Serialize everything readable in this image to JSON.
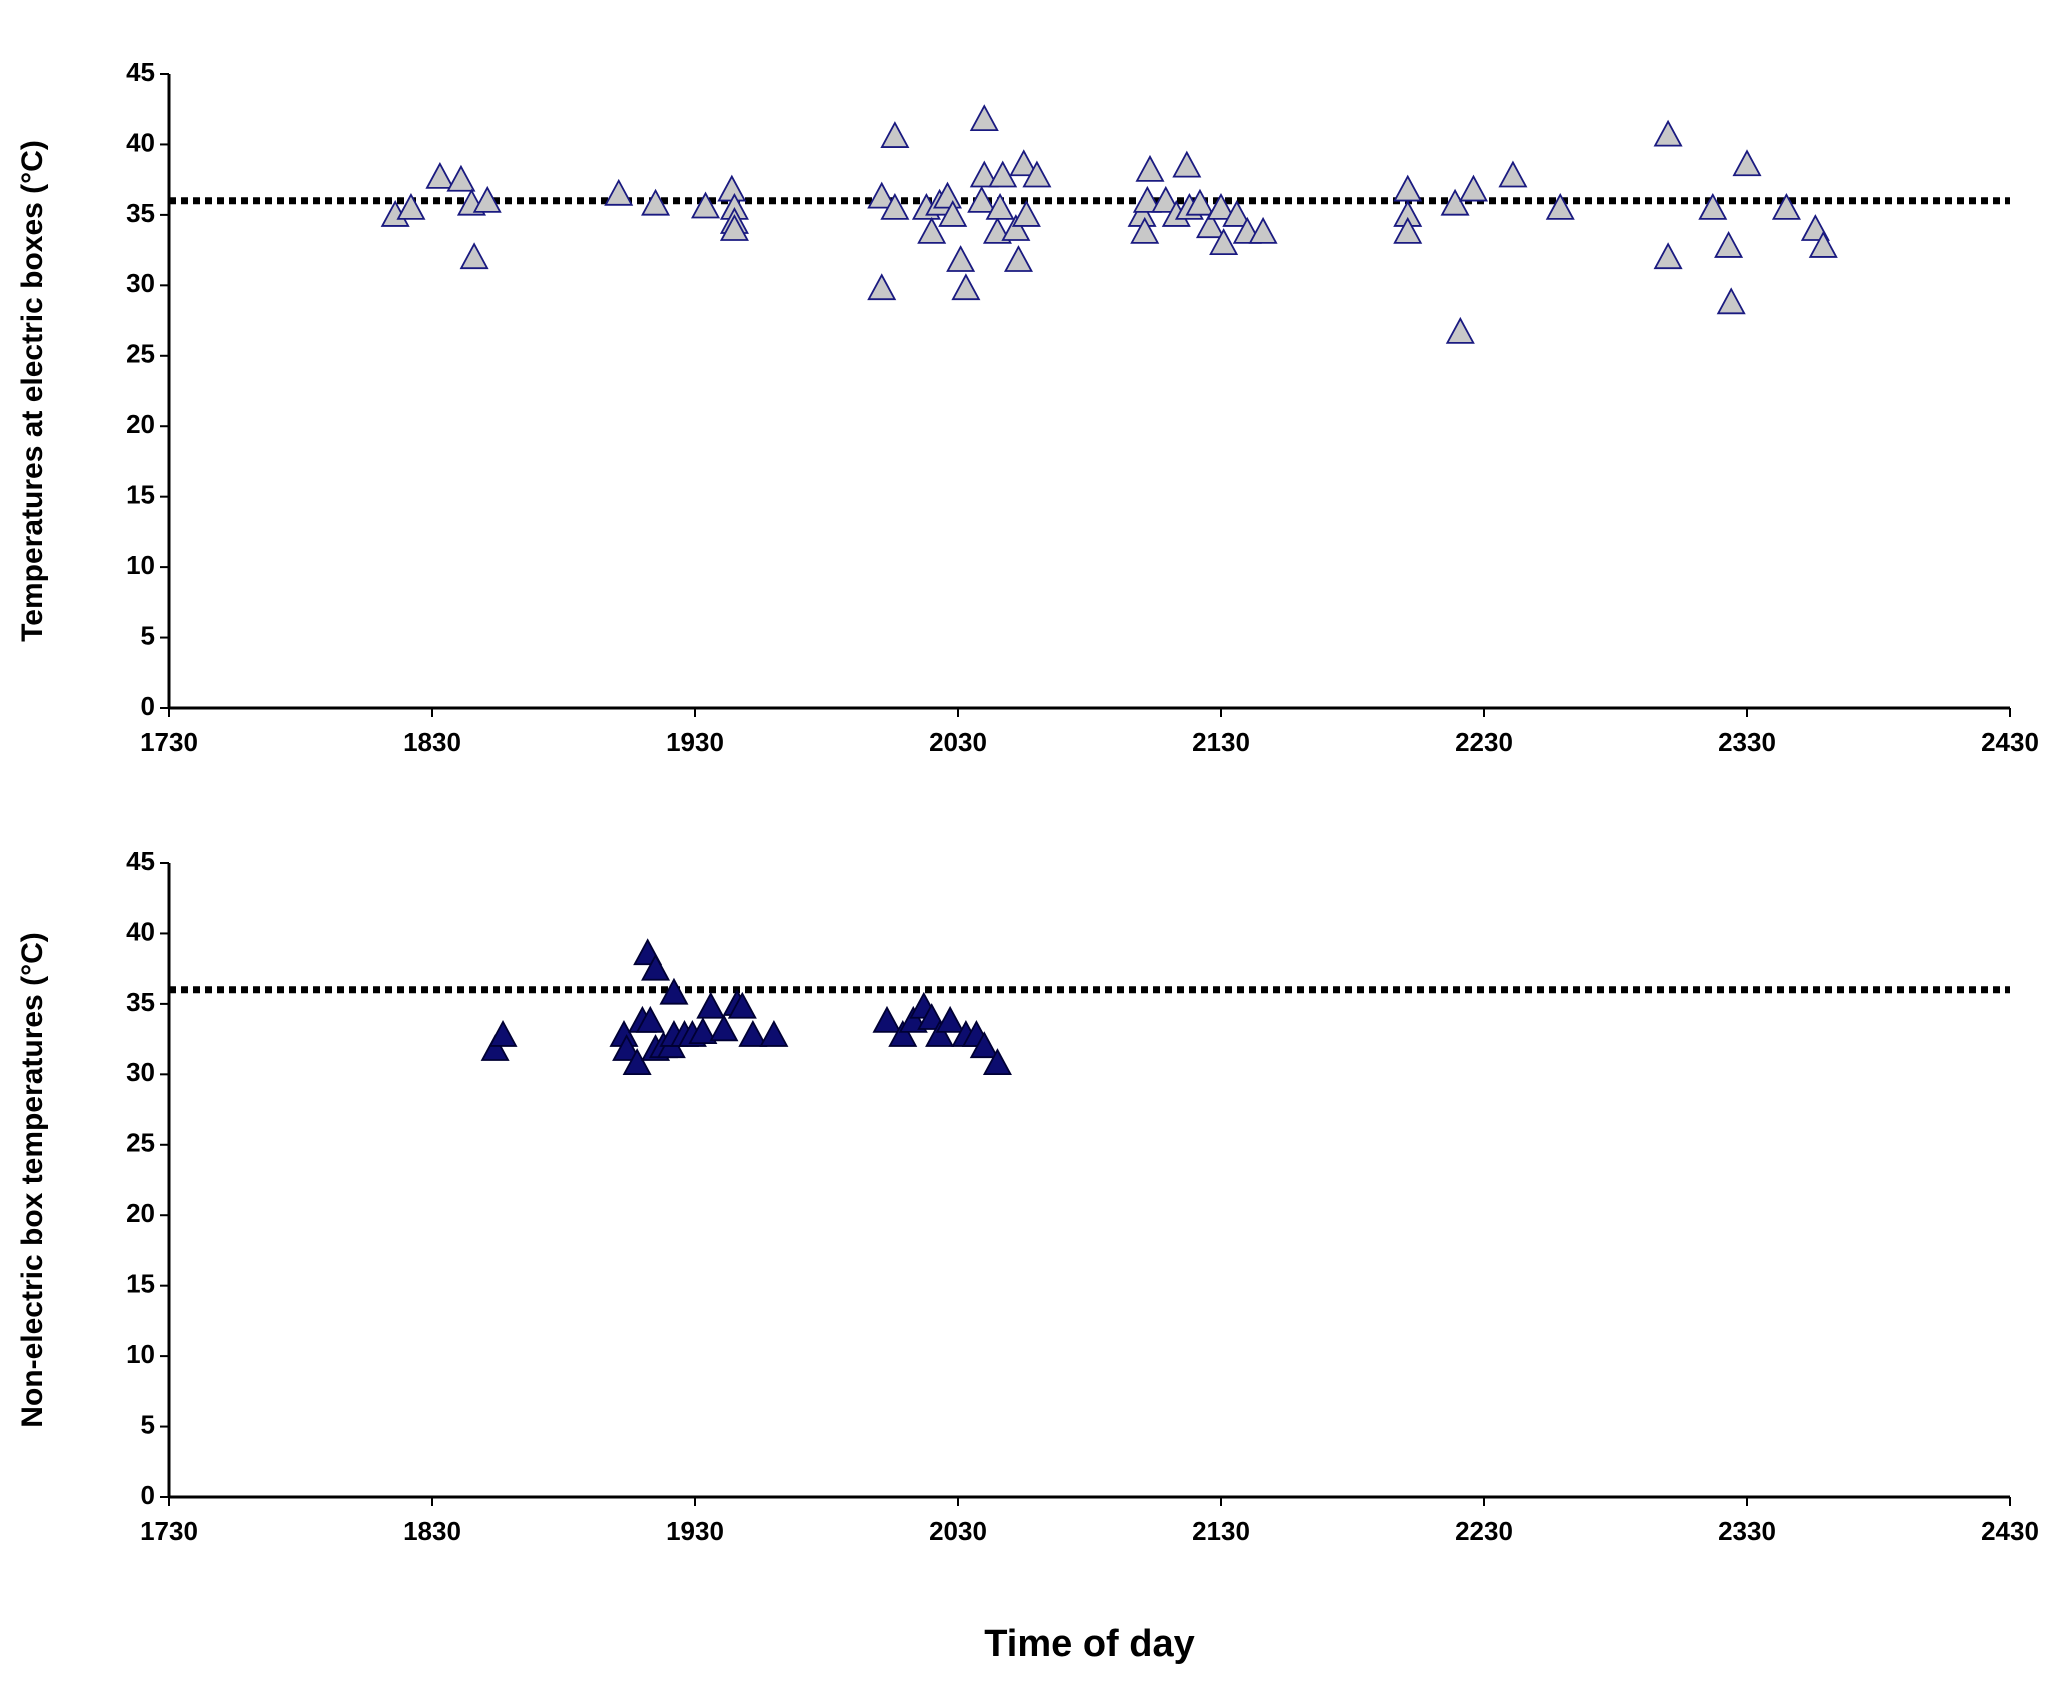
{
  "chart_data": [
    {
      "type": "scatter",
      "y_label": "Temperatures at electric boxes  (°C)",
      "x": [
        1816,
        1822,
        1833,
        1841,
        1845,
        1846,
        1851,
        1901,
        1915,
        1934,
        1944,
        1945,
        1945,
        1945,
        2001,
        2001,
        2006,
        2006,
        2018,
        2020,
        2023,
        2026,
        2028,
        2031,
        2033,
        2039,
        2040,
        2040,
        2045,
        2046,
        2047,
        2052,
        2053,
        2055,
        2056,
        2060,
        2100,
        2101,
        2102,
        2103,
        2109,
        2113,
        2117,
        2118,
        2122,
        2126,
        2130,
        2131,
        2136,
        2140,
        2146,
        2201,
        2201,
        2201,
        2219,
        2221,
        2226,
        2241,
        2259,
        2300,
        2300,
        2317,
        2323,
        2324,
        2330,
        2345,
        2356,
        2359
      ],
      "values": [
        35,
        35.5,
        37.7,
        37.5,
        35.8,
        32,
        36,
        36.5,
        35.8,
        35.6,
        36.8,
        35.5,
        34.5,
        34,
        36.3,
        29.8,
        40.6,
        35.5,
        35.5,
        33.8,
        35.8,
        36.3,
        35,
        31.8,
        29.8,
        36,
        41.8,
        37.8,
        33.8,
        35.5,
        37.8,
        34,
        31.8,
        38.6,
        35,
        37.8,
        35,
        33.8,
        36,
        38.2,
        36,
        35,
        38.5,
        35.5,
        35.8,
        34.2,
        35.5,
        33,
        35,
        33.8,
        33.8,
        36.8,
        35,
        33.8,
        35.8,
        26.7,
        36.8,
        37.8,
        35.5,
        40.7,
        32,
        35.5,
        32.8,
        28.8,
        38.6,
        35.5,
        34,
        32.8
      ],
      "color": "#c8c8c8",
      "edge_color": "#1a1a80",
      "reference_line": 36,
      "xlim": [
        1730,
        2430
      ],
      "xticks": [
        1730,
        1830,
        1930,
        2030,
        2130,
        2230,
        2330,
        2430
      ],
      "ylim": [
        0,
        45
      ],
      "yticks": [
        0,
        5,
        10,
        15,
        20,
        25,
        30,
        35,
        40,
        45
      ]
    },
    {
      "type": "scatter",
      "y_label": "Non-electric box temperatures  (°C)",
      "x_label": "Time of day",
      "x": [
        1854,
        1857,
        1903,
        1904,
        1908,
        1910,
        1912,
        1913,
        1915,
        1915,
        1918,
        1921,
        1922,
        1922,
        1926,
        1929,
        1933,
        1936,
        1941,
        1946,
        1948,
        1952,
        1960,
        2003,
        2009,
        2013,
        2017,
        2020,
        2023,
        2027,
        2033,
        2037,
        2040,
        2045
      ],
      "values": [
        31.8,
        32.8,
        32.8,
        31.8,
        30.8,
        33.8,
        38.6,
        33.8,
        37.5,
        31.8,
        32,
        32,
        35.8,
        32.8,
        32.8,
        32.8,
        33,
        34.8,
        33.2,
        35,
        34.8,
        32.8,
        32.8,
        33.8,
        32.8,
        33.8,
        34.8,
        34,
        32.8,
        33.8,
        32.8,
        32.8,
        32,
        30.8
      ],
      "color": "#0c0c6e",
      "edge_color": "#000033",
      "reference_line": 36,
      "xlim": [
        1730,
        2430
      ],
      "xticks": [
        1730,
        1830,
        1930,
        2030,
        2130,
        2230,
        2330,
        2430
      ],
      "ylim": [
        0,
        45
      ],
      "yticks": [
        0,
        5,
        10,
        15,
        20,
        25,
        30,
        35,
        40,
        45
      ]
    }
  ]
}
